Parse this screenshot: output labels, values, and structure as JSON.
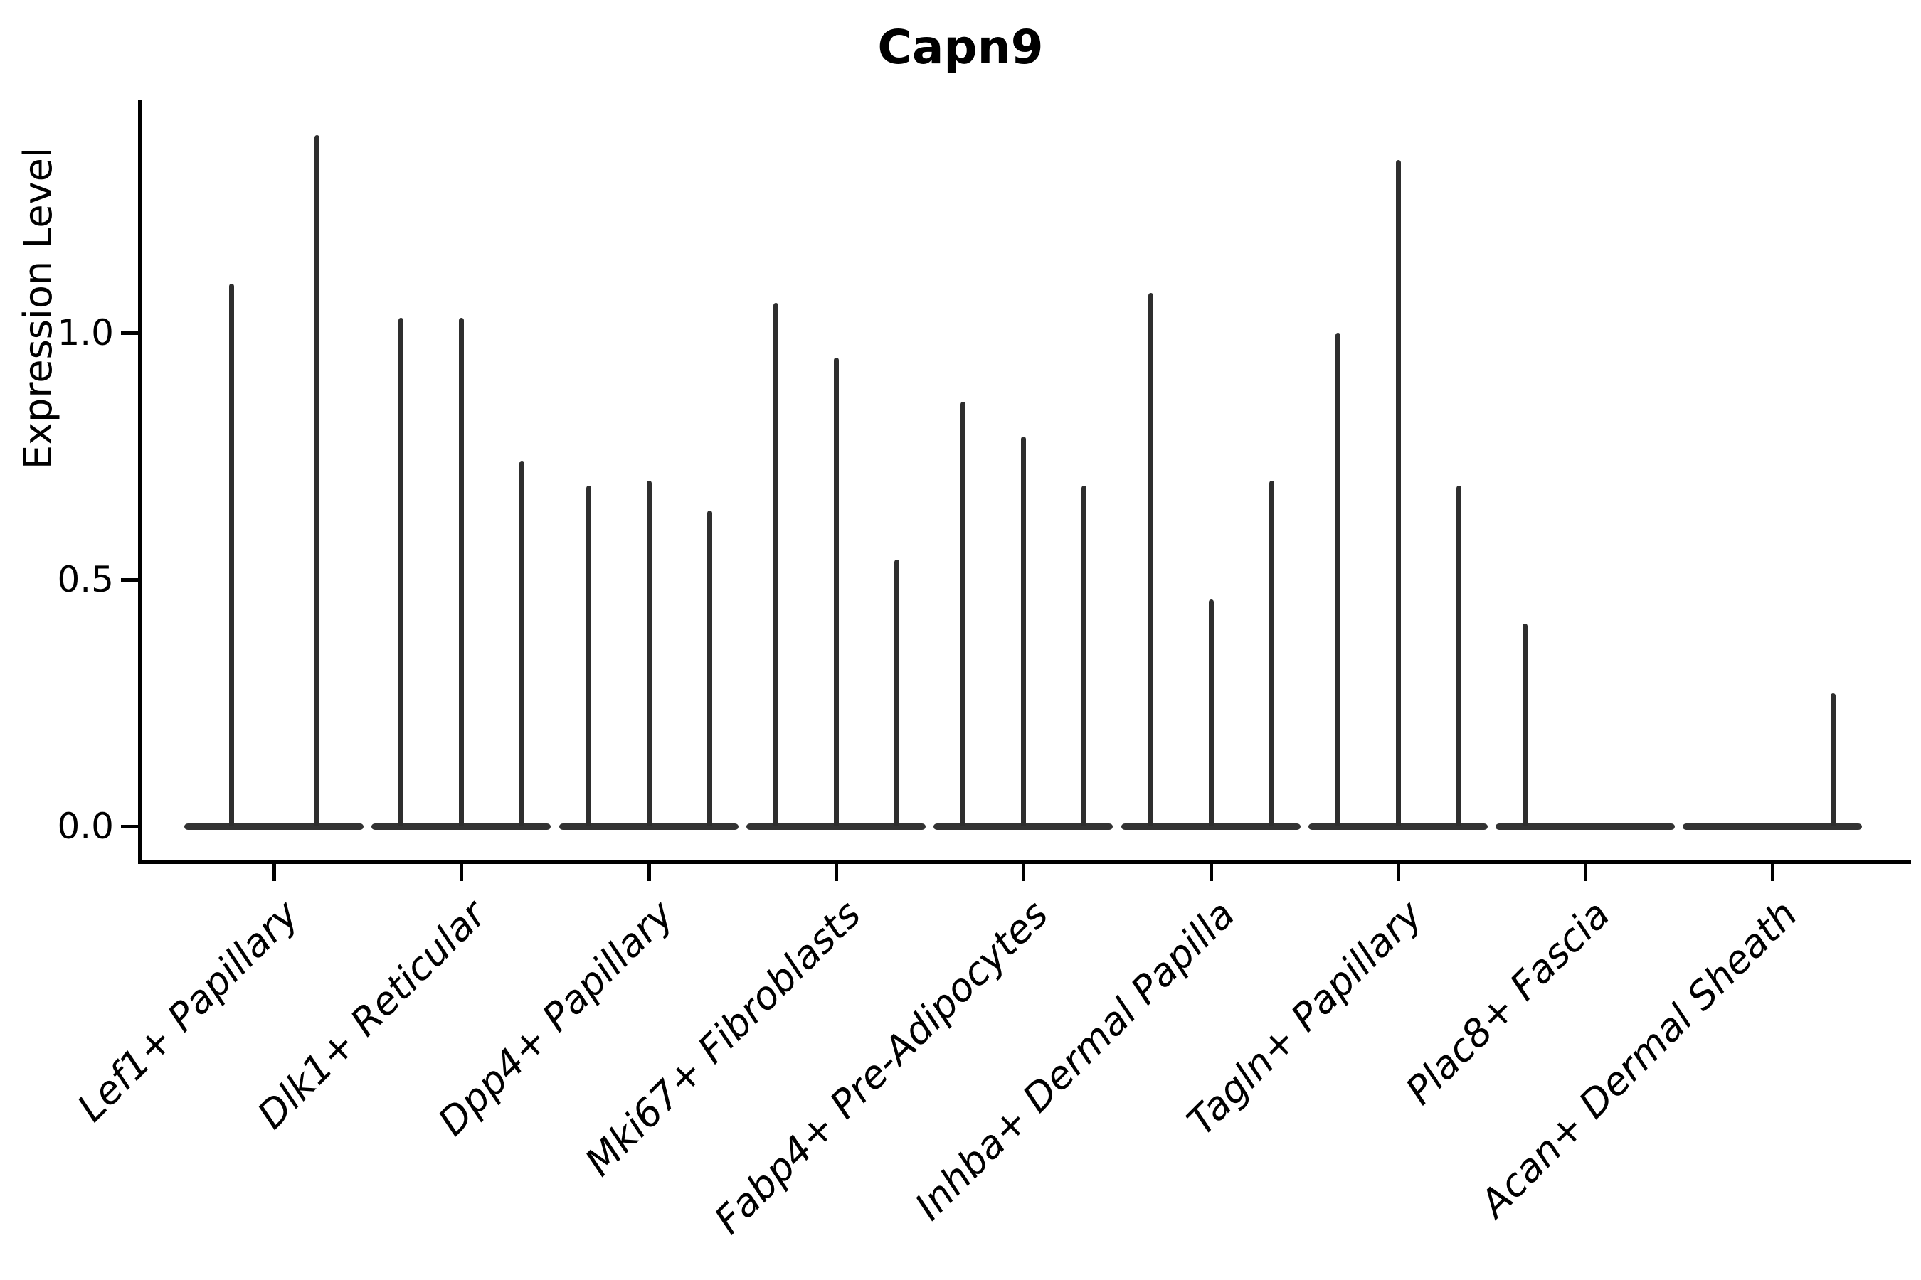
{
  "title": "Capn9",
  "chart_data": {
    "type": "violin",
    "title": "Capn9",
    "xlabel": "",
    "ylabel": "Expression Level",
    "ylim": [
      0,
      1.47
    ],
    "yticks": [
      "0.0",
      "0.5",
      "1.0"
    ],
    "ytick_values": [
      0.0,
      0.5,
      1.0
    ],
    "grid": false,
    "legend": null,
    "description": "Single-gene expression violin plot; each cluster shows narrow spike violins rising from a flat zero baseline; value listed is the maximum expression reached by each violin spike",
    "categories": [
      {
        "label": "Lef1+ Papillary",
        "violins": [
          {
            "pos": -1,
            "max": 1.1
          },
          {
            "pos": 1,
            "max": 1.4
          }
        ]
      },
      {
        "label": "Dlk1+ Reticular",
        "violins": [
          {
            "pos": -1,
            "max": 1.03
          },
          {
            "pos": 0,
            "max": 1.03
          },
          {
            "pos": 1,
            "max": 0.74
          }
        ]
      },
      {
        "label": "Dpp4+ Papillary",
        "violins": [
          {
            "pos": -1,
            "max": 0.69
          },
          {
            "pos": 0,
            "max": 0.7
          },
          {
            "pos": 1,
            "max": 0.64
          }
        ]
      },
      {
        "label": "Mki67+ Fibroblasts",
        "violins": [
          {
            "pos": -1,
            "max": 1.06
          },
          {
            "pos": 0,
            "max": 0.95
          },
          {
            "pos": 1,
            "max": 0.54
          }
        ]
      },
      {
        "label": "Fabp4+ Pre-Adipocytes",
        "violins": [
          {
            "pos": -1,
            "max": 0.86
          },
          {
            "pos": 0,
            "max": 0.79
          },
          {
            "pos": 1,
            "max": 0.69
          }
        ]
      },
      {
        "label": "Inhba+ Dermal Papilla",
        "violins": [
          {
            "pos": -1,
            "max": 1.08
          },
          {
            "pos": 0,
            "max": 0.46
          },
          {
            "pos": 1,
            "max": 0.7
          }
        ]
      },
      {
        "label": "Tagln+ Papillary",
        "violins": [
          {
            "pos": -1,
            "max": 1.0
          },
          {
            "pos": 0,
            "max": 1.35
          },
          {
            "pos": 1,
            "max": 0.69
          }
        ]
      },
      {
        "label": "Plac8+ Fascia",
        "violins": [
          {
            "pos": -1,
            "max": 0.41
          },
          {
            "pos": 0,
            "max": 0.0
          },
          {
            "pos": 1,
            "max": 0.0
          }
        ]
      },
      {
        "label": "Acan+ Dermal Sheath",
        "violins": [
          {
            "pos": -1,
            "max": 0.0
          },
          {
            "pos": 0,
            "max": 0.0
          },
          {
            "pos": 1,
            "max": 0.27
          }
        ]
      }
    ]
  },
  "colors": {
    "spike": "#2e2e2e",
    "baseline": "#333333",
    "axis": "#000000",
    "text": "#000000",
    "background": "#ffffff"
  }
}
